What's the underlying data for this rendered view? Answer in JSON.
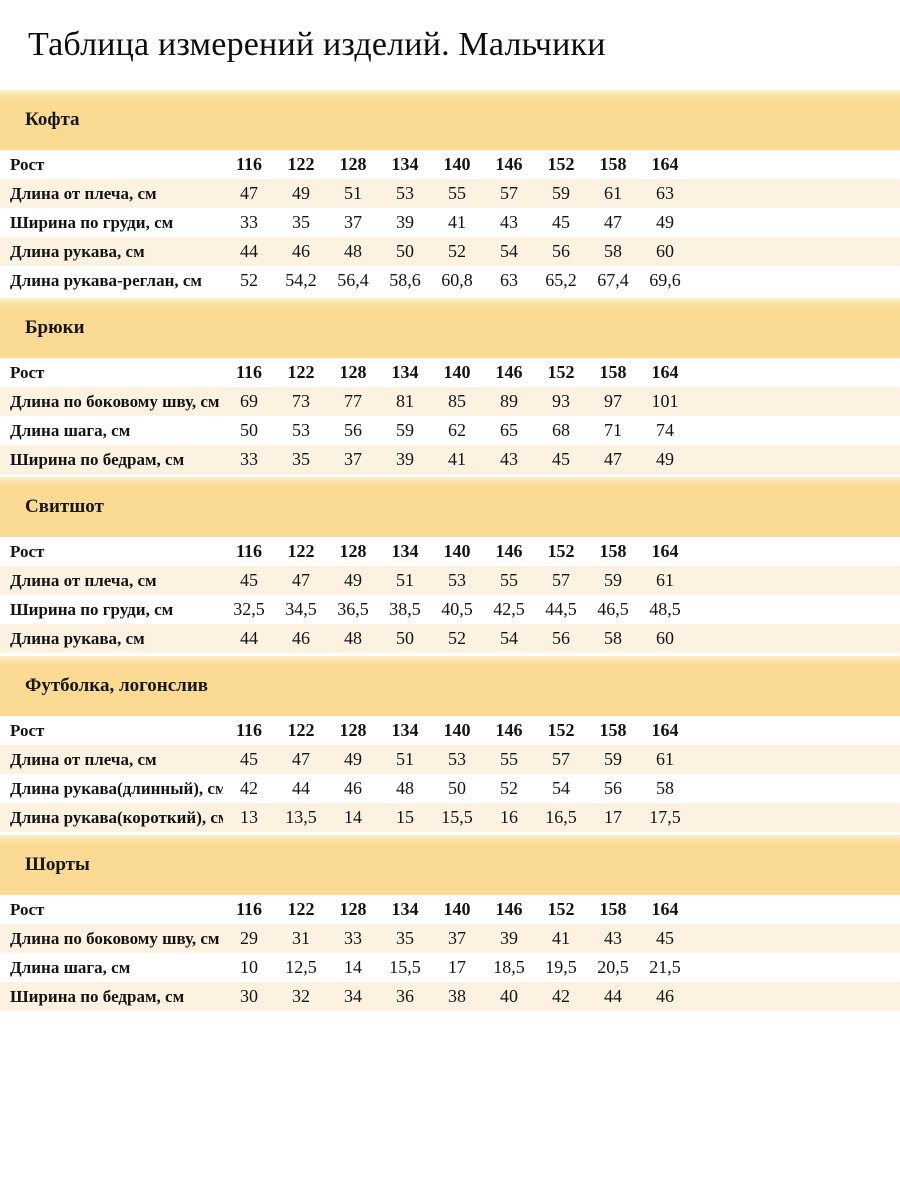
{
  "page": {
    "title": "Таблица измерений изделий. Мальчики"
  },
  "colors": {
    "band_gold": "#fbdb93",
    "row_cream": "#fdf1e2",
    "row_white": "#ffffff",
    "text": "#141414"
  },
  "table": {
    "heights_label": "Рост",
    "heights": [
      "116",
      "122",
      "128",
      "134",
      "140",
      "146",
      "152",
      "158",
      "164"
    ],
    "sections": [
      {
        "title": "Кофта",
        "rows": [
          {
            "label": "Длина от плеча, см",
            "values": [
              "47",
              "49",
              "51",
              "53",
              "55",
              "57",
              "59",
              "61",
              "63"
            ]
          },
          {
            "label": "Ширина по груди, см",
            "values": [
              "33",
              "35",
              "37",
              "39",
              "41",
              "43",
              "45",
              "47",
              "49"
            ]
          },
          {
            "label": "Длина рукава, см",
            "values": [
              "44",
              "46",
              "48",
              "50",
              "52",
              "54",
              "56",
              "58",
              "60"
            ]
          },
          {
            "label": "Длина рукава-реглан, см",
            "values": [
              "52",
              "54,2",
              "56,4",
              "58,6",
              "60,8",
              "63",
              "65,2",
              "67,4",
              "69,6"
            ]
          }
        ]
      },
      {
        "title": "Брюки",
        "rows": [
          {
            "label": "Длина по боковому шву, см",
            "values": [
              "69",
              "73",
              "77",
              "81",
              "85",
              "89",
              "93",
              "97",
              "101"
            ]
          },
          {
            "label": "Длина шага, см",
            "values": [
              "50",
              "53",
              "56",
              "59",
              "62",
              "65",
              "68",
              "71",
              "74"
            ]
          },
          {
            "label": "Ширина по бедрам, см",
            "values": [
              "33",
              "35",
              "37",
              "39",
              "41",
              "43",
              "45",
              "47",
              "49"
            ]
          }
        ]
      },
      {
        "title": "Свитшот",
        "rows": [
          {
            "label": "Длина от плеча, см",
            "values": [
              "45",
              "47",
              "49",
              "51",
              "53",
              "55",
              "57",
              "59",
              "61"
            ]
          },
          {
            "label": "Ширина по груди, см",
            "values": [
              "32,5",
              "34,5",
              "36,5",
              "38,5",
              "40,5",
              "42,5",
              "44,5",
              "46,5",
              "48,5"
            ]
          },
          {
            "label": "Длина рукава, см",
            "values": [
              "44",
              "46",
              "48",
              "50",
              "52",
              "54",
              "56",
              "58",
              "60"
            ]
          }
        ]
      },
      {
        "title": "Футболка, логонслив",
        "rows": [
          {
            "label": "Длина от плеча, см",
            "values": [
              "45",
              "47",
              "49",
              "51",
              "53",
              "55",
              "57",
              "59",
              "61"
            ]
          },
          {
            "label": "Длина рукава(длинный), см",
            "values": [
              "42",
              "44",
              "46",
              "48",
              "50",
              "52",
              "54",
              "56",
              "58"
            ]
          },
          {
            "label": "Длина рукава(короткий), см",
            "values": [
              "13",
              "13,5",
              "14",
              "15",
              "15,5",
              "16",
              "16,5",
              "17",
              "17,5"
            ]
          }
        ]
      },
      {
        "title": "Шорты",
        "rows": [
          {
            "label": "Длина по боковому шву, см",
            "values": [
              "29",
              "31",
              "33",
              "35",
              "37",
              "39",
              "41",
              "43",
              "45"
            ]
          },
          {
            "label": "Длина шага, см",
            "values": [
              "10",
              "12,5",
              "14",
              "15,5",
              "17",
              "18,5",
              "19,5",
              "20,5",
              "21,5"
            ]
          },
          {
            "label": "Ширина по бедрам, см",
            "values": [
              "30",
              "32",
              "34",
              "36",
              "38",
              "40",
              "42",
              "44",
              "46"
            ]
          }
        ]
      }
    ]
  }
}
